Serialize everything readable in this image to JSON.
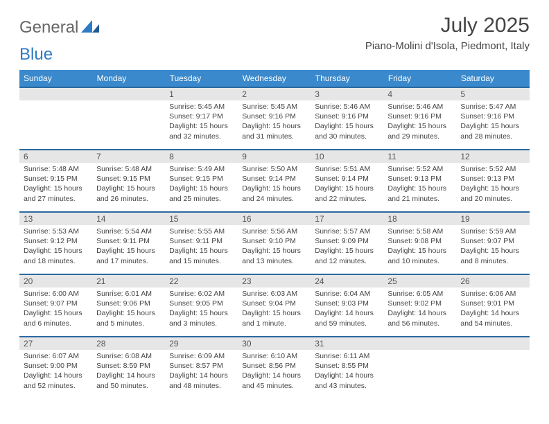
{
  "logo": {
    "general": "General",
    "blue": "Blue"
  },
  "title": "July 2025",
  "location": "Piano-Molini d'Isola, Piedmont, Italy",
  "header_bg": "#3a89cc",
  "header_fg": "#ffffff",
  "rule_color": "#2a6aa0",
  "daynum_bg": "#e6e6e6",
  "text_color": "#444444",
  "font_family": "Arial, Helvetica, sans-serif",
  "title_fontsize": 30,
  "location_fontsize": 15,
  "daynum_fontsize": 12,
  "body_fontsize": 10.5,
  "day_headers": [
    "Sunday",
    "Monday",
    "Tuesday",
    "Wednesday",
    "Thursday",
    "Friday",
    "Saturday"
  ],
  "weeks": [
    [
      null,
      null,
      {
        "n": "1",
        "sunrise": "5:45 AM",
        "sunset": "9:17 PM",
        "daylight": "15 hours and 32 minutes."
      },
      {
        "n": "2",
        "sunrise": "5:45 AM",
        "sunset": "9:16 PM",
        "daylight": "15 hours and 31 minutes."
      },
      {
        "n": "3",
        "sunrise": "5:46 AM",
        "sunset": "9:16 PM",
        "daylight": "15 hours and 30 minutes."
      },
      {
        "n": "4",
        "sunrise": "5:46 AM",
        "sunset": "9:16 PM",
        "daylight": "15 hours and 29 minutes."
      },
      {
        "n": "5",
        "sunrise": "5:47 AM",
        "sunset": "9:16 PM",
        "daylight": "15 hours and 28 minutes."
      }
    ],
    [
      {
        "n": "6",
        "sunrise": "5:48 AM",
        "sunset": "9:15 PM",
        "daylight": "15 hours and 27 minutes."
      },
      {
        "n": "7",
        "sunrise": "5:48 AM",
        "sunset": "9:15 PM",
        "daylight": "15 hours and 26 minutes."
      },
      {
        "n": "8",
        "sunrise": "5:49 AM",
        "sunset": "9:15 PM",
        "daylight": "15 hours and 25 minutes."
      },
      {
        "n": "9",
        "sunrise": "5:50 AM",
        "sunset": "9:14 PM",
        "daylight": "15 hours and 24 minutes."
      },
      {
        "n": "10",
        "sunrise": "5:51 AM",
        "sunset": "9:14 PM",
        "daylight": "15 hours and 22 minutes."
      },
      {
        "n": "11",
        "sunrise": "5:52 AM",
        "sunset": "9:13 PM",
        "daylight": "15 hours and 21 minutes."
      },
      {
        "n": "12",
        "sunrise": "5:52 AM",
        "sunset": "9:13 PM",
        "daylight": "15 hours and 20 minutes."
      }
    ],
    [
      {
        "n": "13",
        "sunrise": "5:53 AM",
        "sunset": "9:12 PM",
        "daylight": "15 hours and 18 minutes."
      },
      {
        "n": "14",
        "sunrise": "5:54 AM",
        "sunset": "9:11 PM",
        "daylight": "15 hours and 17 minutes."
      },
      {
        "n": "15",
        "sunrise": "5:55 AM",
        "sunset": "9:11 PM",
        "daylight": "15 hours and 15 minutes."
      },
      {
        "n": "16",
        "sunrise": "5:56 AM",
        "sunset": "9:10 PM",
        "daylight": "15 hours and 13 minutes."
      },
      {
        "n": "17",
        "sunrise": "5:57 AM",
        "sunset": "9:09 PM",
        "daylight": "15 hours and 12 minutes."
      },
      {
        "n": "18",
        "sunrise": "5:58 AM",
        "sunset": "9:08 PM",
        "daylight": "15 hours and 10 minutes."
      },
      {
        "n": "19",
        "sunrise": "5:59 AM",
        "sunset": "9:07 PM",
        "daylight": "15 hours and 8 minutes."
      }
    ],
    [
      {
        "n": "20",
        "sunrise": "6:00 AM",
        "sunset": "9:07 PM",
        "daylight": "15 hours and 6 minutes."
      },
      {
        "n": "21",
        "sunrise": "6:01 AM",
        "sunset": "9:06 PM",
        "daylight": "15 hours and 5 minutes."
      },
      {
        "n": "22",
        "sunrise": "6:02 AM",
        "sunset": "9:05 PM",
        "daylight": "15 hours and 3 minutes."
      },
      {
        "n": "23",
        "sunrise": "6:03 AM",
        "sunset": "9:04 PM",
        "daylight": "15 hours and 1 minute."
      },
      {
        "n": "24",
        "sunrise": "6:04 AM",
        "sunset": "9:03 PM",
        "daylight": "14 hours and 59 minutes."
      },
      {
        "n": "25",
        "sunrise": "6:05 AM",
        "sunset": "9:02 PM",
        "daylight": "14 hours and 56 minutes."
      },
      {
        "n": "26",
        "sunrise": "6:06 AM",
        "sunset": "9:01 PM",
        "daylight": "14 hours and 54 minutes."
      }
    ],
    [
      {
        "n": "27",
        "sunrise": "6:07 AM",
        "sunset": "9:00 PM",
        "daylight": "14 hours and 52 minutes."
      },
      {
        "n": "28",
        "sunrise": "6:08 AM",
        "sunset": "8:59 PM",
        "daylight": "14 hours and 50 minutes."
      },
      {
        "n": "29",
        "sunrise": "6:09 AM",
        "sunset": "8:57 PM",
        "daylight": "14 hours and 48 minutes."
      },
      {
        "n": "30",
        "sunrise": "6:10 AM",
        "sunset": "8:56 PM",
        "daylight": "14 hours and 45 minutes."
      },
      {
        "n": "31",
        "sunrise": "6:11 AM",
        "sunset": "8:55 PM",
        "daylight": "14 hours and 43 minutes."
      },
      null,
      null
    ]
  ],
  "labels": {
    "sunrise": "Sunrise: ",
    "sunset": "Sunset: ",
    "daylight": "Daylight: "
  }
}
